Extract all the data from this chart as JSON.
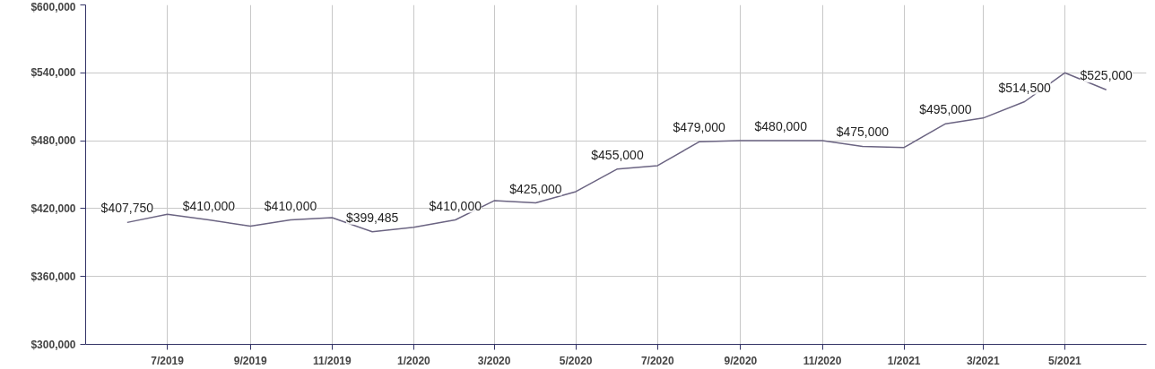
{
  "chart_data": {
    "type": "line",
    "x": [
      "2019-06",
      "2019-07",
      "2019-08",
      "2019-09",
      "2019-10",
      "2019-11",
      "2019-12",
      "2020-01",
      "2020-02",
      "2020-03",
      "2020-04",
      "2020-05",
      "2020-06",
      "2020-07",
      "2020-08",
      "2020-09",
      "2020-10",
      "2020-11",
      "2020-12",
      "2021-01",
      "2021-02",
      "2021-03",
      "2021-04",
      "2021-05",
      "2021-06"
    ],
    "series": [
      {
        "color": "#6b6482",
        "values": [
          407750,
          415000,
          410000,
          404500,
          410000,
          412000,
          399485,
          403500,
          410000,
          427000,
          425000,
          435000,
          455000,
          458000,
          479000,
          480000,
          480000,
          480000,
          475000,
          474000,
          495000,
          500000,
          514500,
          540000,
          525000
        ],
        "value_labels": [
          "$407,750",
          null,
          "$410,000",
          null,
          "$410,000",
          null,
          "$399,485",
          null,
          "$410,000",
          null,
          "$425,000",
          null,
          "$455,000",
          null,
          "$479,000",
          null,
          "$480,000",
          null,
          "$475,000",
          null,
          "$495,000",
          null,
          "$514,500",
          null,
          "$525,000"
        ]
      }
    ],
    "xlim": [
      "2019-05",
      "2021-07"
    ],
    "xticks": [
      {
        "value": "2019-07",
        "label": "7/2019"
      },
      {
        "value": "2019-09",
        "label": "9/2019"
      },
      {
        "value": "2019-11",
        "label": "11/2019"
      },
      {
        "value": "2020-01",
        "label": "1/2020"
      },
      {
        "value": "2020-03",
        "label": "3/2020"
      },
      {
        "value": "2020-05",
        "label": "5/2020"
      },
      {
        "value": "2020-07",
        "label": "7/2020"
      },
      {
        "value": "2020-09",
        "label": "9/2020"
      },
      {
        "value": "2020-11",
        "label": "11/2020"
      },
      {
        "value": "2021-01",
        "label": "1/2021"
      },
      {
        "value": "2021-03",
        "label": "3/2021"
      },
      {
        "value": "2021-05",
        "label": "5/2021"
      }
    ],
    "ylim": [
      300000,
      600000
    ],
    "yticks": [
      {
        "value": 300000,
        "label": "$300,000"
      },
      {
        "value": 360000,
        "label": "$360,000"
      },
      {
        "value": 420000,
        "label": "$420,000"
      },
      {
        "value": 480000,
        "label": "$480,000"
      },
      {
        "value": 540000,
        "label": "$540,000"
      },
      {
        "value": 600000,
        "label": "$600,000"
      }
    ],
    "grid": true,
    "marker": "none",
    "line_style": "solid"
  }
}
